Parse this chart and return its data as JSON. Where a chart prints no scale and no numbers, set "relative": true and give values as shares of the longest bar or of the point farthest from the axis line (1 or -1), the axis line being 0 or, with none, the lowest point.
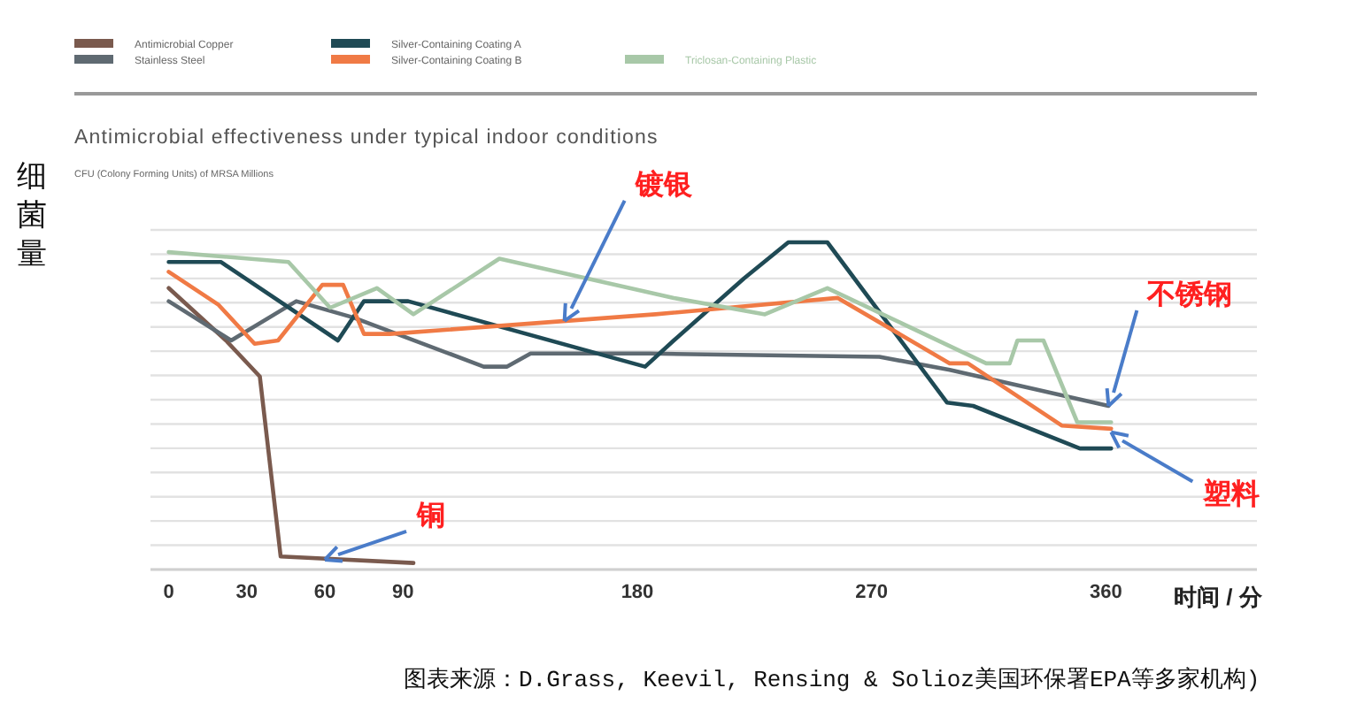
{
  "chart_data": {
    "type": "line",
    "title": "Antimicrobial effectiveness under typical indoor conditions",
    "subtitle": "CFU (Colony Forming Units) of MRSA Millions",
    "ylabel": "细菌量",
    "xlabel": "时间 / 分",
    "relative": true,
    "xlim": [
      -7,
      418
    ],
    "xticks": [
      0,
      30,
      60,
      90,
      180,
      270,
      360
    ],
    "grid": "y",
    "legend": "top left",
    "marker": "none",
    "line_style": "solid",
    "series": [
      {
        "name": "Antimicrobial Copper",
        "color": "#7a5a4e",
        "x": [
          0,
          22,
          35,
          43,
          94
        ],
        "values": [
          0.86,
          0.7,
          0.59,
          0.04,
          0.02
        ]
      },
      {
        "name": "Stainless Steel",
        "color": "#5f6a72",
        "x": [
          0,
          24,
          49,
          71,
          121,
          130,
          139,
          185,
          273,
          300,
          361
        ],
        "values": [
          0.82,
          0.7,
          0.82,
          0.77,
          0.62,
          0.62,
          0.66,
          0.66,
          0.65,
          0.61,
          0.5
        ]
      },
      {
        "name": "Silver-Containing Coating A",
        "color": "#1f4a55",
        "x": [
          0,
          20,
          65,
          75,
          92,
          183,
          194,
          221,
          238,
          253,
          299,
          309,
          350,
          362
        ],
        "values": [
          0.94,
          0.94,
          0.7,
          0.82,
          0.82,
          0.62,
          0.7,
          0.89,
          1,
          1,
          0.51,
          0.5,
          0.37,
          0.37
        ]
      },
      {
        "name": "Silver-Containing Coating B",
        "color": "#f07a45",
        "x": [
          0,
          19,
          33,
          42,
          59,
          67,
          75,
          85,
          187,
          257,
          300,
          307,
          343,
          362
        ],
        "values": [
          0.91,
          0.81,
          0.69,
          0.7,
          0.87,
          0.87,
          0.72,
          0.72,
          0.78,
          0.83,
          0.63,
          0.63,
          0.44,
          0.43
        ]
      },
      {
        "name": "Triclosan-Containing Plastic",
        "color": "#a8c8a8",
        "x": [
          0,
          46,
          62,
          80,
          94,
          127,
          194,
          229,
          253,
          314,
          323,
          326,
          336,
          349,
          362
        ],
        "values": [
          0.97,
          0.94,
          0.8,
          0.86,
          0.78,
          0.95,
          0.83,
          0.78,
          0.86,
          0.63,
          0.63,
          0.7,
          0.7,
          0.45,
          0.45
        ]
      }
    ],
    "annotations": [
      {
        "text": "铜",
        "x": 60,
        "y": 0.03
      },
      {
        "text": "镀银",
        "x": 152,
        "y": 0.76
      },
      {
        "text": "不锈钢",
        "x": 361,
        "y": 0.5
      },
      {
        "text": "塑料",
        "x": 362,
        "y": 0.42
      },
      "图表来源：D.Grass, Keevil, Rensing & Solioz美国环保署EPA等多家机构)"
    ]
  }
}
